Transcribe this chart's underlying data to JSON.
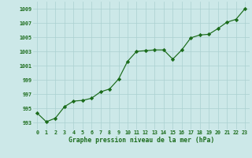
{
  "x": [
    0,
    1,
    2,
    3,
    4,
    5,
    6,
    7,
    8,
    9,
    10,
    11,
    12,
    13,
    14,
    15,
    16,
    17,
    18,
    19,
    20,
    21,
    22,
    23
  ],
  "y": [
    994.3,
    993.1,
    993.6,
    995.2,
    996.0,
    996.1,
    996.4,
    997.3,
    997.7,
    999.1,
    1001.6,
    1003.0,
    1003.1,
    1003.2,
    1003.2,
    1001.9,
    1003.2,
    1004.9,
    1005.3,
    1005.4,
    1006.2,
    1007.1,
    1007.5,
    1009.0
  ],
  "ylim": [
    992,
    1010
  ],
  "yticks": [
    993,
    995,
    997,
    999,
    1001,
    1003,
    1005,
    1007,
    1009
  ],
  "xticks": [
    0,
    1,
    2,
    3,
    4,
    5,
    6,
    7,
    8,
    9,
    10,
    11,
    12,
    13,
    14,
    15,
    16,
    17,
    18,
    19,
    20,
    21,
    22,
    23
  ],
  "xlabel": "Graphe pression niveau de la mer (hPa)",
  "line_color": "#1a6b1a",
  "marker_color": "#1a6b1a",
  "bg_color": "#cce8e8",
  "grid_color": "#aad0d0",
  "label_color": "#1a6b1a"
}
